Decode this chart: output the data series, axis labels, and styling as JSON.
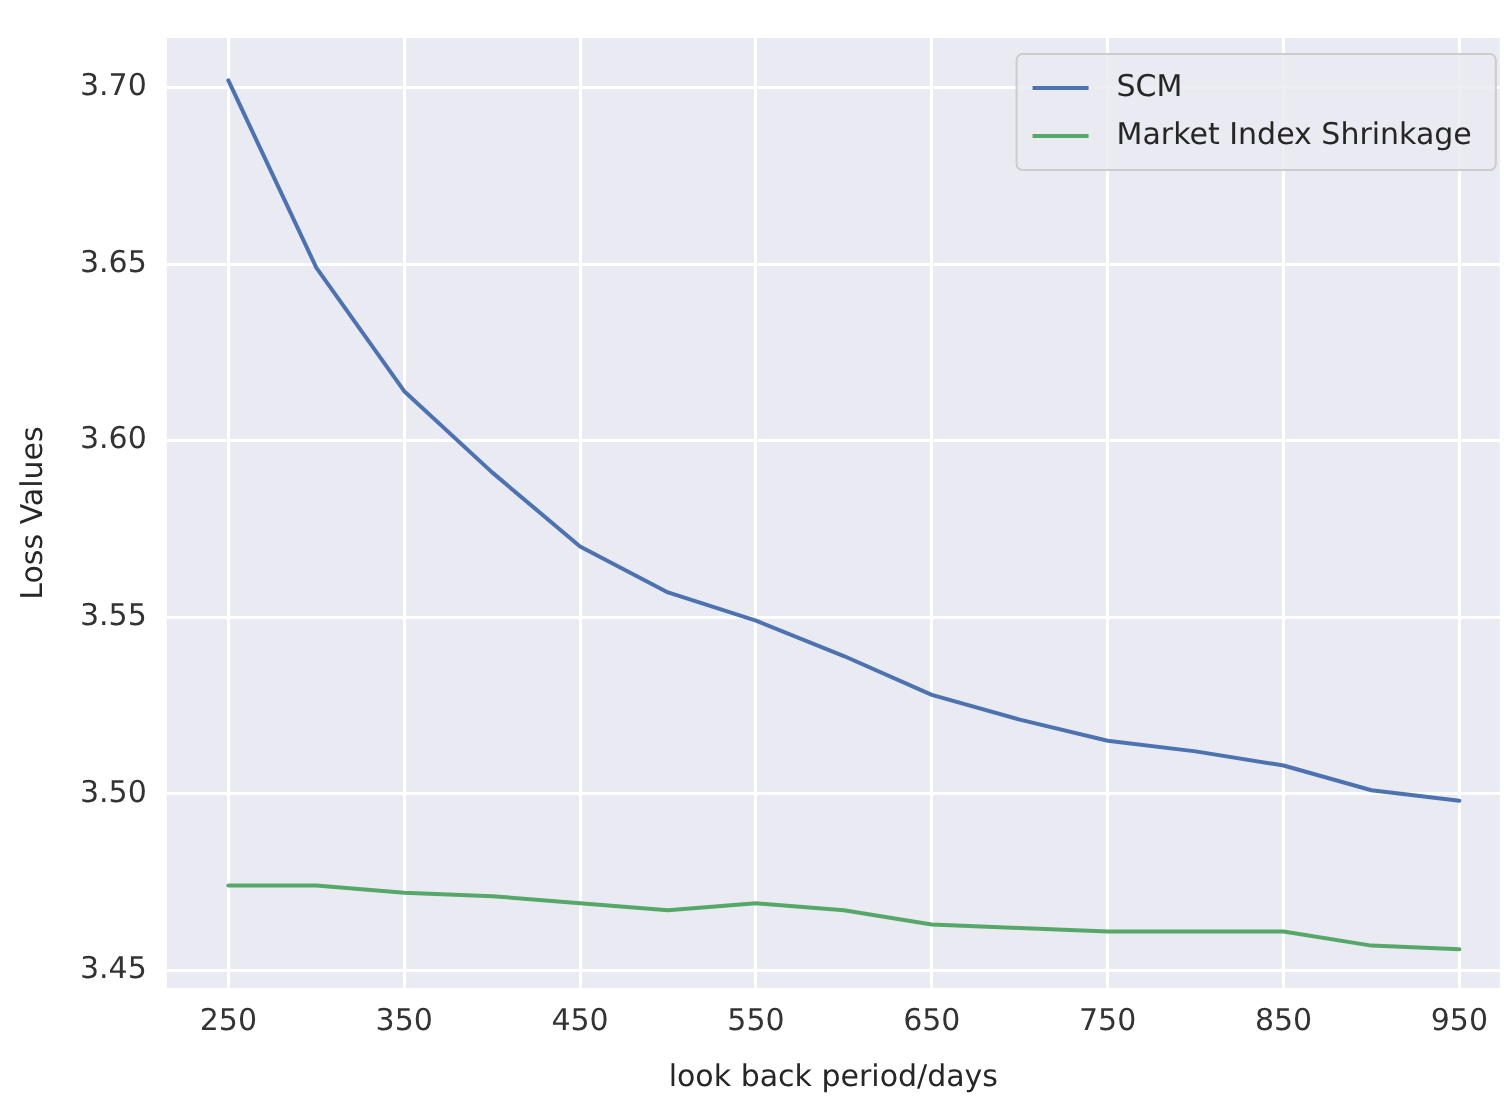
{
  "chart_data": {
    "type": "line",
    "xlabel": "look back period/days",
    "ylabel": "Loss Values",
    "x": [
      250,
      300,
      350,
      400,
      450,
      500,
      550,
      600,
      650,
      700,
      750,
      800,
      850,
      900,
      950
    ],
    "series": [
      {
        "name": "SCM",
        "color": "#4c72b0",
        "values": [
          3.702,
          3.649,
          3.614,
          3.591,
          3.57,
          3.557,
          3.549,
          3.539,
          3.528,
          3.521,
          3.515,
          3.512,
          3.508,
          3.501,
          3.498
        ]
      },
      {
        "name": "Market Index Shrinkage",
        "color": "#55a868",
        "values": [
          3.474,
          3.474,
          3.472,
          3.471,
          3.469,
          3.467,
          3.469,
          3.467,
          3.463,
          3.462,
          3.461,
          3.461,
          3.461,
          3.457,
          3.456
        ]
      }
    ],
    "xlim": [
      215,
      973
    ],
    "xticks": [
      250,
      350,
      450,
      550,
      650,
      750,
      850,
      950
    ],
    "ylim": [
      3.445,
      3.714
    ],
    "yticks": [
      {
        "value": 3.45,
        "label": "3.45"
      },
      {
        "value": 3.5,
        "label": "3.50"
      },
      {
        "value": 3.55,
        "label": "3.55"
      },
      {
        "value": 3.6,
        "label": "3.60"
      },
      {
        "value": 3.65,
        "label": "3.65"
      },
      {
        "value": 3.7,
        "label": "3.70"
      }
    ],
    "grid": true,
    "legend": "top right",
    "marker": "none",
    "line_style": "solid"
  }
}
